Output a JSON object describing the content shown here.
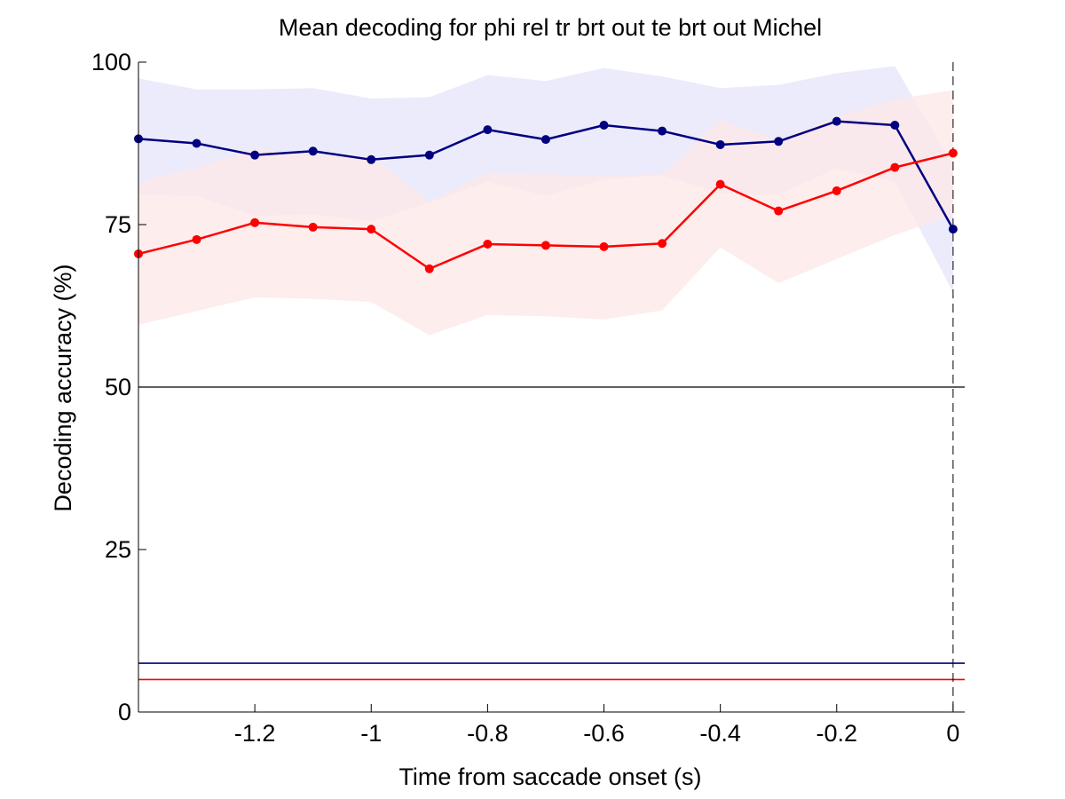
{
  "chart_data": {
    "type": "line",
    "title": "Mean decoding for phi rel tr brt out te brt out  Michel",
    "xlabel": "Time from saccade onset (s)",
    "ylabel": "Decoding accuracy (%)",
    "xlim": [
      -1.4,
      0.02
    ],
    "ylim": [
      0,
      100
    ],
    "xticks": [
      -1.2,
      -1,
      -0.8,
      -0.6,
      -0.4,
      -0.2,
      0
    ],
    "xtick_labels": [
      "-1.2",
      "-1",
      "-0.8",
      "-0.6",
      "-0.4",
      "-0.2",
      "0"
    ],
    "yticks": [
      0,
      25,
      50,
      75,
      100
    ],
    "ytick_labels": [
      "0",
      "25",
      "50",
      "75",
      "100"
    ],
    "grid": false,
    "x": [
      -1.4,
      -1.3,
      -1.2,
      -1.1,
      -1.0,
      -0.9,
      -0.8,
      -0.7,
      -0.6,
      -0.5,
      -0.4,
      -0.3,
      -0.2,
      -0.1,
      0.0
    ],
    "series": [
      {
        "color": "#000080",
        "band_color": "#e6e6fa",
        "values": [
          88.2,
          87.5,
          85.7,
          86.3,
          85.0,
          85.7,
          89.6,
          88.1,
          90.3,
          89.4,
          87.3,
          87.8,
          90.9,
          90.3,
          74.3
        ],
        "upper": [
          97.5,
          95.8,
          95.8,
          96.0,
          94.4,
          94.6,
          98.0,
          97.1,
          99.1,
          97.8,
          96.0,
          96.5,
          98.3,
          99.4,
          84.0
        ],
        "lower": [
          79.6,
          79.4,
          76.3,
          76.6,
          75.5,
          78.4,
          81.6,
          79.4,
          82.0,
          82.6,
          79.8,
          79.6,
          83.7,
          81.6,
          64.6
        ],
        "chance": 7.5
      },
      {
        "color": "#ff0000",
        "band_color": "#fde8e8",
        "values": [
          70.5,
          72.7,
          75.3,
          74.6,
          74.3,
          68.2,
          72.0,
          71.8,
          71.6,
          72.1,
          81.2,
          77.1,
          80.2,
          83.8,
          86.0
        ],
        "upper": [
          81.6,
          83.8,
          86.6,
          86.0,
          85.5,
          78.5,
          83.0,
          82.8,
          82.5,
          82.8,
          91.1,
          88.0,
          91.6,
          94.3,
          95.7
        ],
        "lower": [
          59.6,
          61.7,
          63.8,
          63.6,
          63.1,
          58.0,
          61.1,
          60.9,
          60.4,
          61.8,
          71.5,
          66.0,
          69.7,
          73.4,
          76.5
        ],
        "chance": 5.0
      }
    ],
    "hlines": [
      {
        "y": 50,
        "color": "#000000"
      }
    ],
    "vlines": [
      {
        "x": 0,
        "color": "#000000",
        "style": "dashed"
      }
    ]
  }
}
